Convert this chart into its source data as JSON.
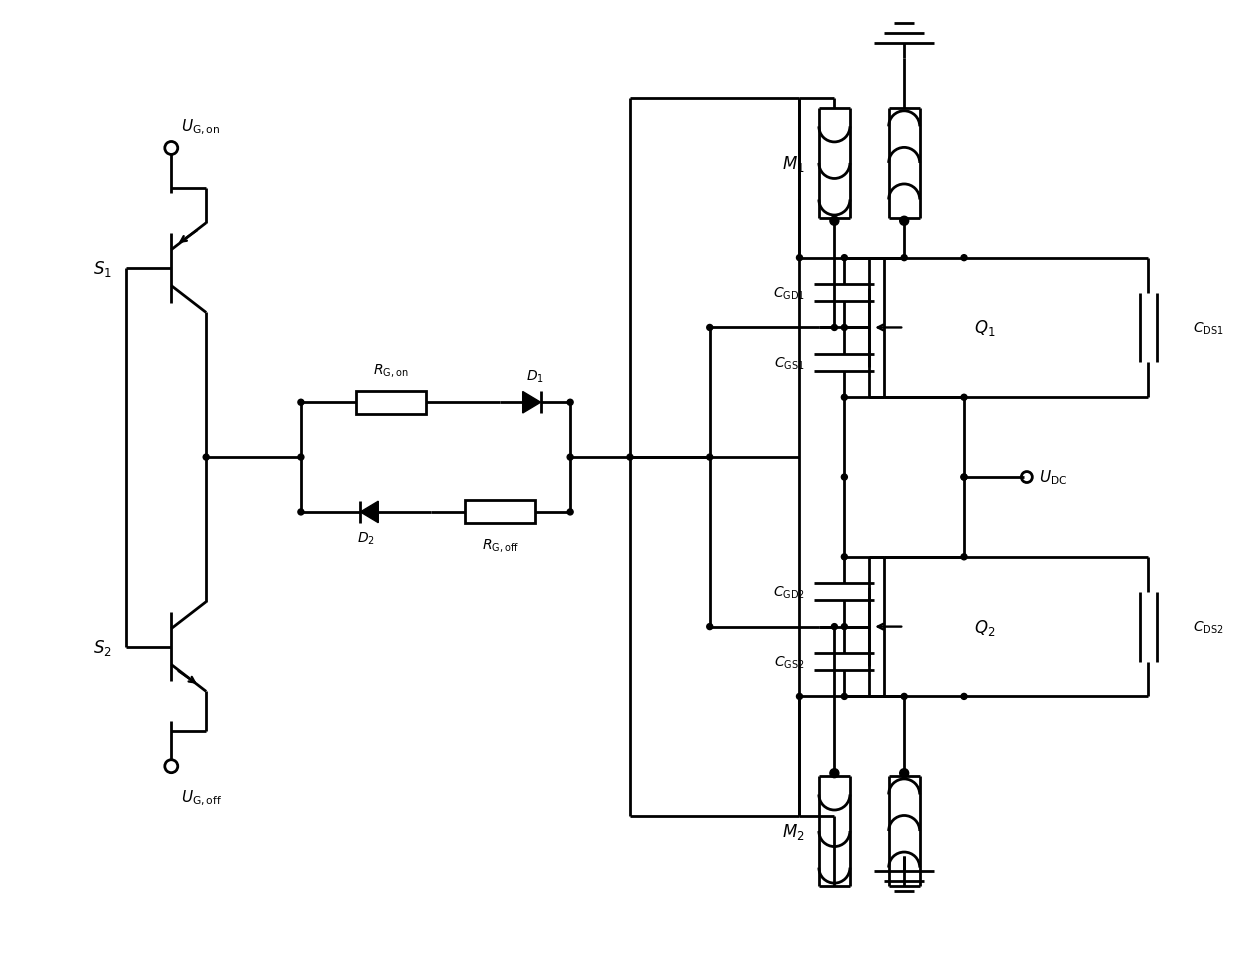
{
  "bg_color": "#ffffff",
  "line_color": "#000000",
  "line_width": 2.0,
  "fig_width": 12.4,
  "fig_height": 9.78
}
